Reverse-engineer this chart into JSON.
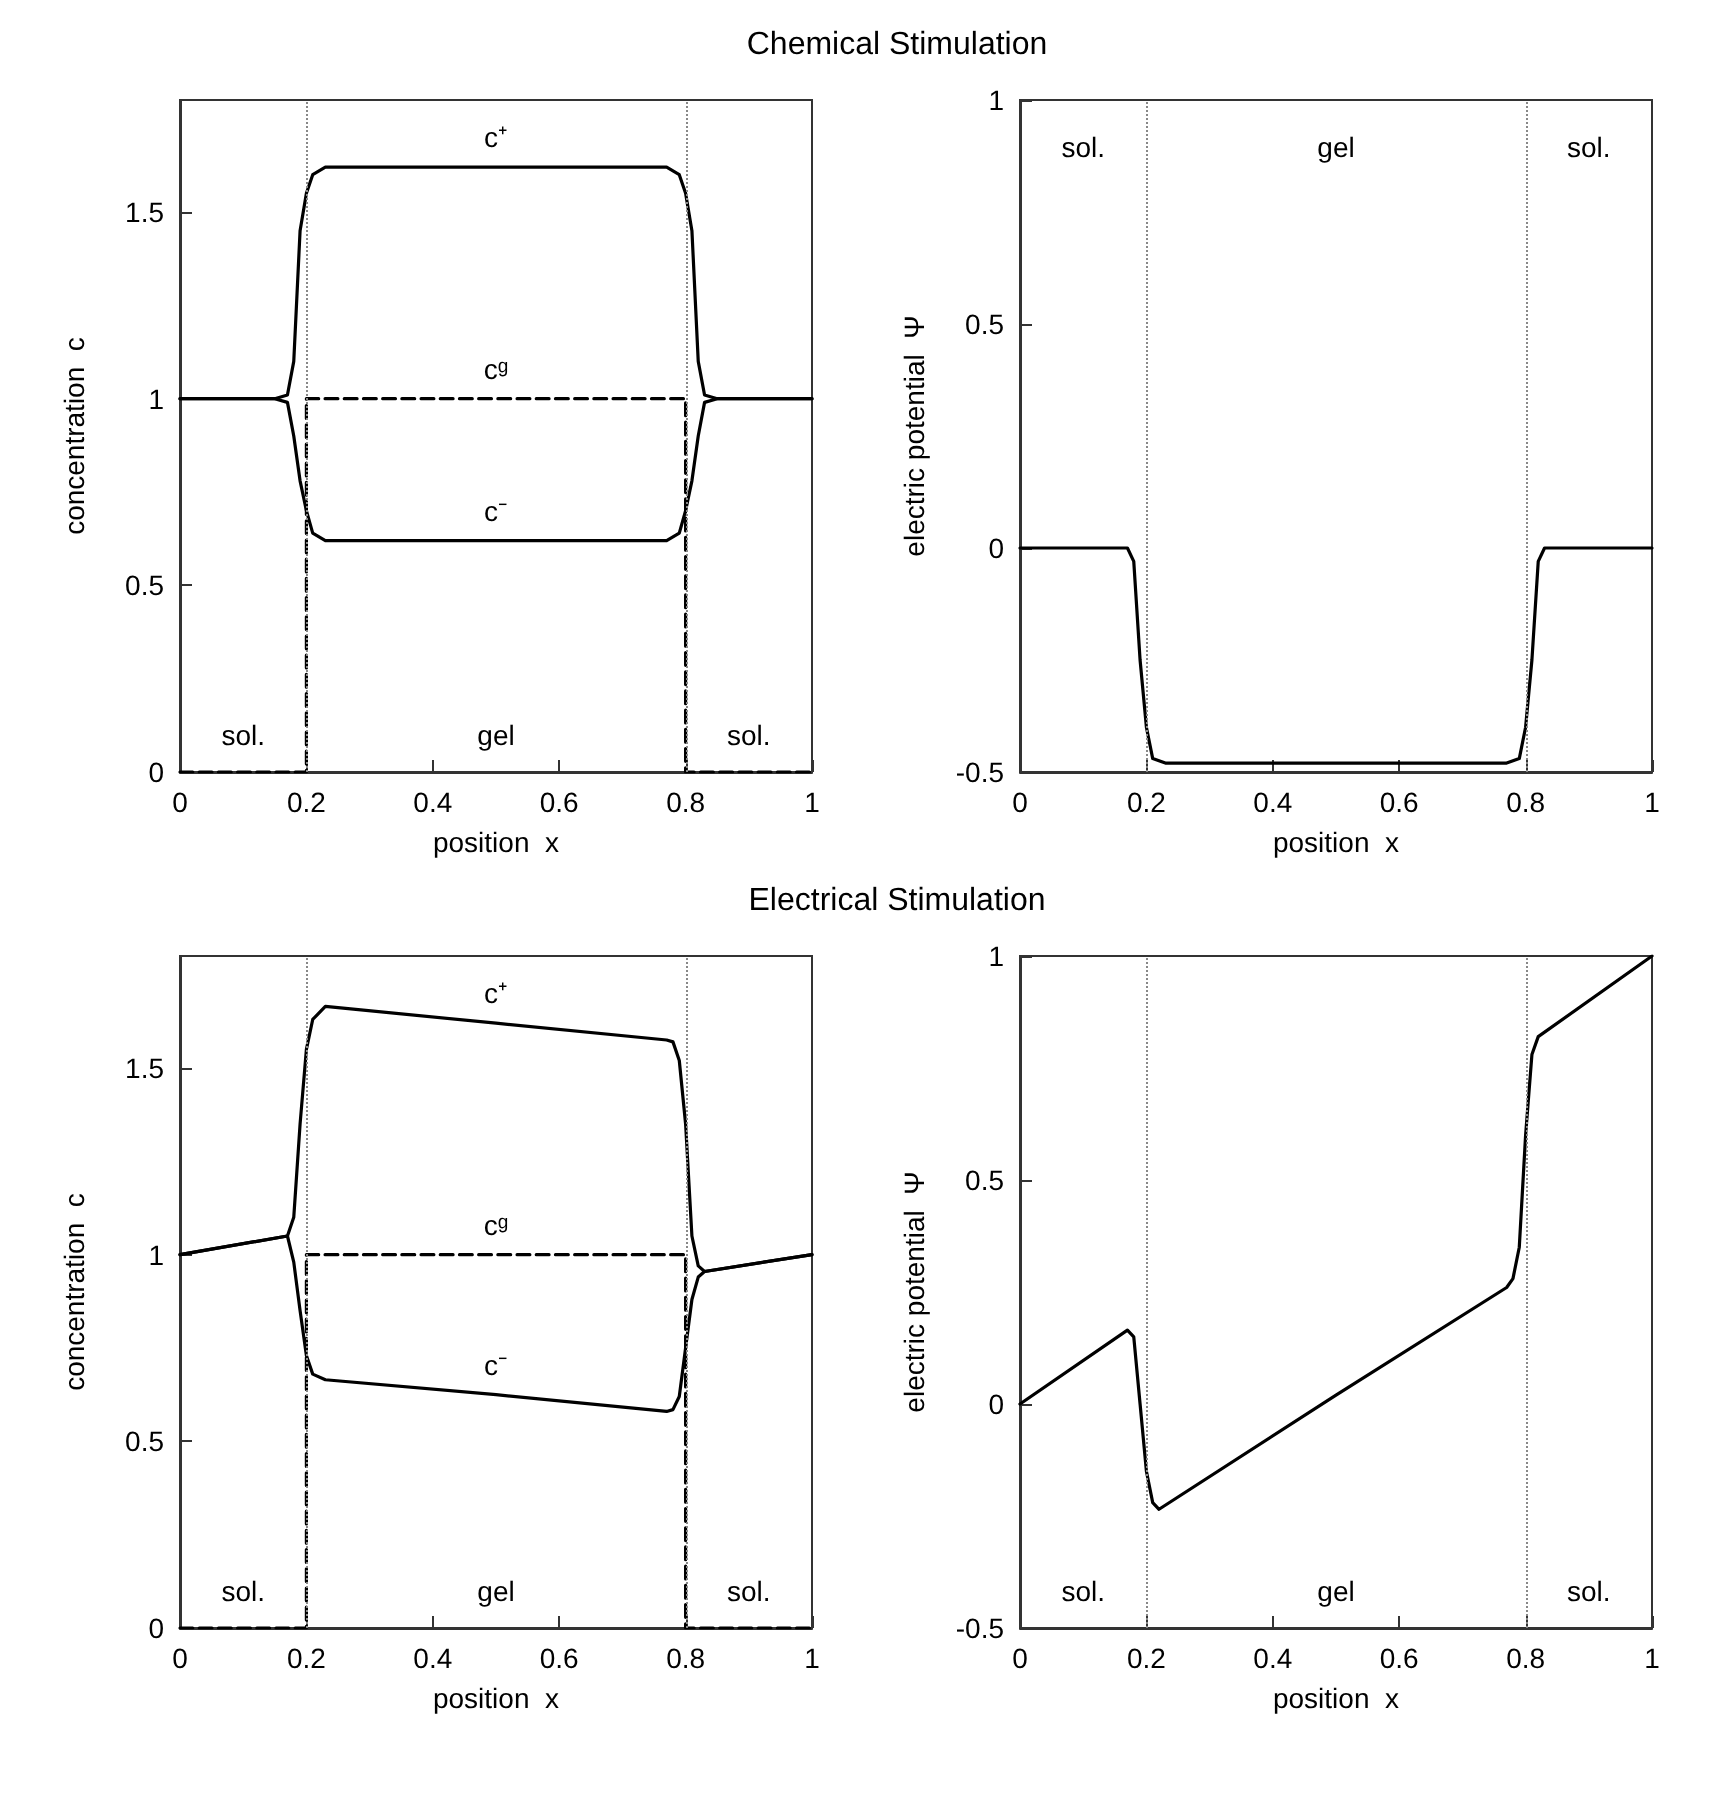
{
  "chart_data": [
    {
      "type": "line",
      "title": "Chemical Stimulation",
      "xlabel": "position  x",
      "ylabel": "concentration  c",
      "xlim": [
        0,
        1
      ],
      "xticks": [
        0,
        0.2,
        0.4,
        0.6,
        0.8,
        1
      ],
      "ylim": [
        0,
        1.8
      ],
      "yticks": [
        0,
        0.5,
        1,
        1.5
      ],
      "ref_lines": [
        {
          "axis": "x",
          "value": 0.2,
          "color": "#888888",
          "line_style": "dotted"
        },
        {
          "axis": "x",
          "value": 0.8,
          "color": "#888888",
          "line_style": "dotted"
        }
      ],
      "annotations": [
        "sol.",
        "gel",
        "sol."
      ],
      "series": [
        {
          "name": "c⁺",
          "color": "#000000",
          "x": [
            0,
            0.15,
            0.17,
            0.18,
            0.19,
            0.2,
            0.21,
            0.23,
            0.5,
            0.77,
            0.79,
            0.8,
            0.81,
            0.82,
            0.83,
            0.85,
            1
          ],
          "values": [
            1,
            1,
            1.01,
            1.1,
            1.45,
            1.55,
            1.6,
            1.62,
            1.62,
            1.62,
            1.6,
            1.55,
            1.45,
            1.1,
            1.01,
            1,
            1
          ]
        },
        {
          "name": "cᵍ",
          "color": "#000000",
          "line_style": "dashed",
          "x": [
            0,
            0.2,
            0.2,
            0.5,
            0.8,
            0.8,
            1
          ],
          "values": [
            0,
            0,
            1,
            1,
            1,
            0,
            0
          ]
        },
        {
          "name": "c⁻",
          "color": "#000000",
          "x": [
            0,
            0.15,
            0.17,
            0.18,
            0.19,
            0.2,
            0.21,
            0.23,
            0.5,
            0.77,
            0.79,
            0.8,
            0.81,
            0.82,
            0.83,
            0.85,
            1
          ],
          "values": [
            1,
            1,
            0.99,
            0.9,
            0.78,
            0.7,
            0.64,
            0.62,
            0.62,
            0.62,
            0.64,
            0.7,
            0.78,
            0.9,
            0.99,
            1,
            1
          ]
        }
      ]
    },
    {
      "type": "line",
      "xlabel": "position  x",
      "ylabel": "electric potential  Ψ",
      "xlim": [
        0,
        1
      ],
      "xticks": [
        0,
        0.2,
        0.4,
        0.6,
        0.8,
        1
      ],
      "ylim": [
        -0.5,
        1
      ],
      "yticks": [
        -0.5,
        0,
        0.5,
        1
      ],
      "ref_lines": [
        {
          "axis": "x",
          "value": 0.2,
          "color": "#888888",
          "line_style": "dotted"
        },
        {
          "axis": "x",
          "value": 0.8,
          "color": "#888888",
          "line_style": "dotted"
        }
      ],
      "annotations": [
        "sol.",
        "gel",
        "sol."
      ],
      "series": [
        {
          "color": "#000000",
          "x": [
            0,
            0.15,
            0.17,
            0.18,
            0.19,
            0.2,
            0.21,
            0.23,
            0.5,
            0.77,
            0.79,
            0.8,
            0.81,
            0.82,
            0.83,
            0.85,
            1
          ],
          "values": [
            0,
            0,
            0,
            -0.03,
            -0.25,
            -0.4,
            -0.47,
            -0.48,
            -0.48,
            -0.48,
            -0.47,
            -0.4,
            -0.25,
            -0.03,
            0,
            0,
            0
          ]
        }
      ]
    },
    {
      "type": "line",
      "title": "Electrical Stimulation",
      "xlabel": "position  x",
      "ylabel": "concentration  c",
      "xlim": [
        0,
        1
      ],
      "xticks": [
        0,
        0.2,
        0.4,
        0.6,
        0.8,
        1
      ],
      "ylim": [
        0,
        1.8
      ],
      "yticks": [
        0,
        0.5,
        1,
        1.5
      ],
      "ref_lines": [
        {
          "axis": "x",
          "value": 0.2,
          "color": "#888888",
          "line_style": "dotted"
        },
        {
          "axis": "x",
          "value": 0.8,
          "color": "#888888",
          "line_style": "dotted"
        }
      ],
      "annotations": [
        "sol.",
        "gel",
        "sol."
      ],
      "series": [
        {
          "name": "c⁺",
          "color": "#000000",
          "x": [
            0,
            0.17,
            0.18,
            0.19,
            0.2,
            0.21,
            0.23,
            0.5,
            0.77,
            0.78,
            0.79,
            0.8,
            0.81,
            0.82,
            0.83,
            1
          ],
          "values": [
            1,
            1.05,
            1.1,
            1.35,
            1.55,
            1.63,
            1.665,
            1.62,
            1.575,
            1.57,
            1.52,
            1.35,
            1.05,
            0.97,
            0.955,
            1
          ]
        },
        {
          "name": "cᵍ",
          "color": "#000000",
          "line_style": "dashed",
          "x": [
            0,
            0.2,
            0.2,
            0.5,
            0.8,
            0.8,
            1
          ],
          "values": [
            0,
            0,
            1,
            1,
            1,
            0,
            0
          ]
        },
        {
          "name": "c⁻",
          "color": "#000000",
          "x": [
            0,
            0.17,
            0.18,
            0.19,
            0.2,
            0.21,
            0.23,
            0.5,
            0.77,
            0.78,
            0.79,
            0.8,
            0.81,
            0.82,
            0.83,
            1
          ],
          "values": [
            1,
            1.05,
            0.98,
            0.85,
            0.73,
            0.68,
            0.665,
            0.625,
            0.58,
            0.585,
            0.62,
            0.75,
            0.88,
            0.94,
            0.955,
            1
          ]
        }
      ]
    },
    {
      "type": "line",
      "xlabel": "position  x",
      "ylabel": "electric potential  Ψ",
      "xlim": [
        0,
        1
      ],
      "xticks": [
        0,
        0.2,
        0.4,
        0.6,
        0.8,
        1
      ],
      "ylim": [
        -0.5,
        1
      ],
      "yticks": [
        -0.5,
        0,
        0.5,
        1
      ],
      "ref_lines": [
        {
          "axis": "x",
          "value": 0.2,
          "color": "#888888",
          "line_style": "dotted"
        },
        {
          "axis": "x",
          "value": 0.8,
          "color": "#888888",
          "line_style": "dotted"
        }
      ],
      "annotations": [
        "sol.",
        "gel",
        "sol."
      ],
      "series": [
        {
          "color": "#000000",
          "x": [
            0,
            0.17,
            0.18,
            0.19,
            0.2,
            0.21,
            0.22,
            0.5,
            0.77,
            0.78,
            0.79,
            0.8,
            0.81,
            0.82,
            1
          ],
          "values": [
            0,
            0.165,
            0.15,
            0,
            -0.15,
            -0.22,
            -0.235,
            0.02,
            0.26,
            0.28,
            0.35,
            0.6,
            0.78,
            0.82,
            1
          ]
        }
      ]
    }
  ]
}
